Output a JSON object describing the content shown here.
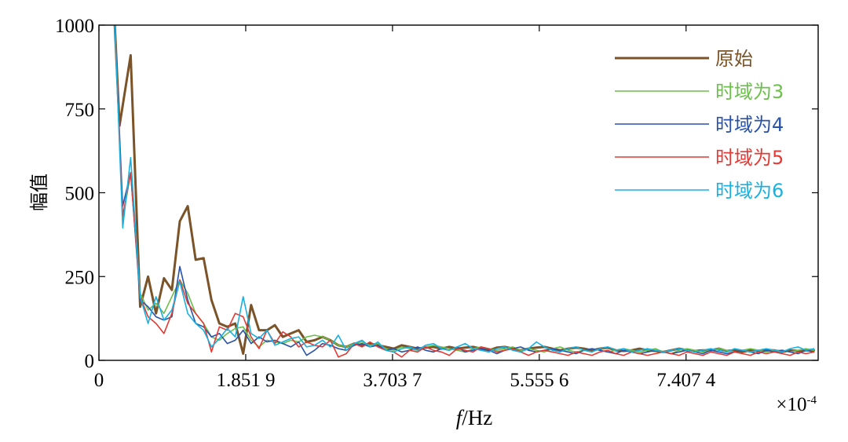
{
  "chart_data": {
    "type": "line",
    "title": "",
    "xlabel_var": "f",
    "xlabel_unit": "/Hz",
    "ylabel": "幅值",
    "x_multiplier": "×10",
    "x_multiplier_exp": "-4",
    "xlim": [
      0,
      9.074
    ],
    "ylim": [
      0,
      1000
    ],
    "xticks": [
      0,
      1.8519,
      3.7037,
      5.5556,
      7.4074
    ],
    "xtick_labels": [
      "0",
      "1.851 9",
      "3.703 7",
      "5.555 6",
      "7.407 4"
    ],
    "yticks": [
      0,
      250,
      500,
      750,
      1000
    ],
    "ytick_labels": [
      "0",
      "250",
      "500",
      "750",
      "1000"
    ],
    "grid": false,
    "legend_position": "top-right",
    "series": [
      {
        "name": "原始",
        "color": "#7B5328",
        "line_width": 3,
        "x": [
          0.2,
          0.26,
          0.4,
          0.52,
          0.62,
          0.72,
          0.82,
          0.92,
          1.02,
          1.12,
          1.22,
          1.32,
          1.42,
          1.52,
          1.62,
          1.72,
          1.82,
          1.92,
          2.02,
          2.12,
          2.22,
          2.32,
          2.42,
          2.52,
          2.62,
          2.72,
          2.82,
          2.92,
          3.02,
          3.12,
          3.22,
          3.32,
          3.42,
          3.52,
          3.62,
          3.72,
          3.82,
          3.92,
          4.02,
          4.12,
          4.22,
          4.32,
          4.42,
          4.52,
          4.62,
          4.72,
          4.82,
          4.92,
          5.02,
          5.12,
          5.22,
          5.32,
          5.42,
          5.52,
          5.62,
          5.72,
          5.82,
          5.92,
          6.02,
          6.12,
          6.22,
          6.32,
          6.42,
          6.52,
          6.62,
          6.72,
          6.82,
          6.92,
          7.02,
          7.12,
          7.22,
          7.32,
          7.42,
          7.52,
          7.62,
          7.72,
          7.82,
          7.92,
          8.02,
          8.12,
          8.22,
          8.32,
          8.42,
          8.52,
          8.62,
          8.72,
          8.82,
          8.92,
          9.02
        ],
        "y": [
          1000,
          700,
          910,
          160,
          250,
          140,
          245,
          210,
          415,
          460,
          300,
          305,
          180,
          110,
          100,
          110,
          20,
          165,
          90,
          90,
          105,
          70,
          80,
          90,
          55,
          60,
          70,
          60,
          45,
          40,
          50,
          45,
          50,
          45,
          40,
          35,
          45,
          40,
          35,
          38,
          40,
          35,
          40,
          35,
          38,
          40,
          35,
          30,
          38,
          40,
          35,
          30,
          35,
          38,
          40,
          35,
          30,
          35,
          38,
          35,
          30,
          35,
          38,
          30,
          28,
          30,
          35,
          30,
          28,
          25,
          30,
          35,
          30,
          28,
          30,
          30,
          35,
          28,
          30,
          25,
          30,
          28,
          30,
          30,
          25,
          30,
          28,
          30,
          30
        ]
      },
      {
        "name": "时域为3",
        "color": "#6BBF4A",
        "line_width": 1.6,
        "x": [
          0.2,
          0.3,
          0.4,
          0.52,
          0.62,
          0.72,
          0.82,
          0.92,
          1.02,
          1.12,
          1.22,
          1.32,
          1.42,
          1.52,
          1.62,
          1.72,
          1.82,
          1.92,
          2.02,
          2.12,
          2.22,
          2.32,
          2.42,
          2.52,
          2.62,
          2.72,
          2.82,
          2.92,
          3.02,
          3.12,
          3.22,
          3.32,
          3.42,
          3.52,
          3.62,
          3.72,
          3.82,
          3.92,
          4.02,
          4.12,
          4.22,
          4.32,
          4.42,
          4.52,
          4.62,
          4.72,
          4.82,
          4.92,
          5.02,
          5.12,
          5.22,
          5.32,
          5.42,
          5.52,
          5.62,
          5.72,
          5.82,
          5.92,
          6.02,
          6.12,
          6.22,
          6.32,
          6.42,
          6.52,
          6.62,
          6.72,
          6.82,
          6.92,
          7.02,
          7.12,
          7.22,
          7.32,
          7.42,
          7.52,
          7.62,
          7.72,
          7.82,
          7.92,
          8.02,
          8.12,
          8.22,
          8.32,
          8.42,
          8.52,
          8.62,
          8.72,
          8.82,
          8.92,
          9.02
        ],
        "y": [
          1000,
          420,
          560,
          200,
          150,
          170,
          140,
          190,
          240,
          200,
          140,
          110,
          70,
          60,
          80,
          95,
          100,
          60,
          40,
          60,
          55,
          50,
          60,
          55,
          70,
          75,
          70,
          60,
          45,
          40,
          50,
          55,
          45,
          50,
          35,
          30,
          40,
          35,
          30,
          40,
          45,
          40,
          35,
          30,
          25,
          35,
          40,
          35,
          30,
          35,
          40,
          30,
          35,
          30,
          25,
          35,
          40,
          30,
          25,
          30,
          35,
          30,
          25,
          30,
          35,
          30,
          25,
          30,
          35,
          25,
          20,
          30,
          35,
          30,
          25,
          30,
          35,
          30,
          25,
          30,
          35,
          30,
          25,
          30,
          30,
          25,
          30,
          35,
          30
        ]
      },
      {
        "name": "时域为4",
        "color": "#2A52A8",
        "line_width": 1.6,
        "x": [
          0.2,
          0.3,
          0.4,
          0.52,
          0.62,
          0.72,
          0.82,
          0.92,
          1.02,
          1.12,
          1.22,
          1.32,
          1.42,
          1.52,
          1.62,
          1.72,
          1.82,
          1.92,
          2.02,
          2.12,
          2.22,
          2.32,
          2.42,
          2.52,
          2.62,
          2.72,
          2.82,
          2.92,
          3.02,
          3.12,
          3.22,
          3.32,
          3.42,
          3.52,
          3.62,
          3.72,
          3.82,
          3.92,
          4.02,
          4.12,
          4.22,
          4.32,
          4.42,
          4.52,
          4.62,
          4.72,
          4.82,
          4.92,
          5.02,
          5.12,
          5.22,
          5.32,
          5.42,
          5.52,
          5.62,
          5.72,
          5.82,
          5.92,
          6.02,
          6.12,
          6.22,
          6.32,
          6.42,
          6.52,
          6.62,
          6.72,
          6.82,
          6.92,
          7.02,
          7.12,
          7.22,
          7.32,
          7.42,
          7.52,
          7.62,
          7.72,
          7.82,
          7.92,
          8.02,
          8.12,
          8.22,
          8.32,
          8.42,
          8.52,
          8.62,
          8.72,
          8.82,
          8.92,
          9.02
        ],
        "y": [
          1000,
          460,
          560,
          180,
          160,
          130,
          120,
          130,
          280,
          180,
          110,
          100,
          70,
          80,
          50,
          60,
          90,
          50,
          70,
          55,
          60,
          50,
          40,
          55,
          15,
          30,
          50,
          45,
          35,
          30,
          45,
          50,
          40,
          45,
          30,
          35,
          25,
          30,
          40,
          30,
          25,
          35,
          30,
          40,
          25,
          30,
          35,
          30,
          20,
          30,
          35,
          40,
          30,
          25,
          30,
          35,
          30,
          25,
          20,
          30,
          35,
          30,
          25,
          20,
          30,
          25,
          20,
          25,
          30,
          25,
          20,
          25,
          30,
          25,
          20,
          30,
          25,
          20,
          25,
          30,
          25,
          20,
          30,
          25,
          30,
          25,
          20,
          30,
          25
        ]
      },
      {
        "name": "时域为5",
        "color": "#E23A35",
        "line_width": 1.6,
        "x": [
          0.2,
          0.3,
          0.4,
          0.52,
          0.62,
          0.72,
          0.82,
          0.92,
          1.02,
          1.12,
          1.22,
          1.32,
          1.42,
          1.52,
          1.62,
          1.72,
          1.82,
          1.92,
          2.02,
          2.12,
          2.22,
          2.32,
          2.42,
          2.52,
          2.62,
          2.72,
          2.82,
          2.92,
          3.02,
          3.12,
          3.22,
          3.32,
          3.42,
          3.52,
          3.62,
          3.72,
          3.82,
          3.92,
          4.02,
          4.12,
          4.22,
          4.32,
          4.42,
          4.52,
          4.62,
          4.72,
          4.82,
          4.92,
          5.02,
          5.12,
          5.22,
          5.32,
          5.42,
          5.52,
          5.62,
          5.72,
          5.82,
          5.92,
          6.02,
          6.12,
          6.22,
          6.32,
          6.42,
          6.52,
          6.62,
          6.72,
          6.82,
          6.92,
          7.02,
          7.12,
          7.22,
          7.32,
          7.42,
          7.52,
          7.62,
          7.72,
          7.82,
          7.92,
          8.02,
          8.12,
          8.22,
          8.32,
          8.42,
          8.52,
          8.62,
          8.72,
          8.82,
          8.92,
          9.02
        ],
        "y": [
          1000,
          430,
          560,
          190,
          130,
          110,
          80,
          140,
          240,
          170,
          140,
          110,
          25,
          100,
          90,
          140,
          130,
          70,
          35,
          90,
          50,
          85,
          70,
          40,
          55,
          45,
          40,
          60,
          10,
          20,
          50,
          40,
          55,
          40,
          30,
          25,
          10,
          30,
          25,
          40,
          30,
          25,
          15,
          35,
          30,
          25,
          40,
          35,
          25,
          30,
          35,
          25,
          15,
          25,
          30,
          25,
          20,
          15,
          25,
          20,
          15,
          25,
          30,
          20,
          15,
          25,
          20,
          15,
          20,
          25,
          20,
          15,
          25,
          20,
          15,
          25,
          20,
          15,
          25,
          20,
          15,
          25,
          20,
          25,
          20,
          15,
          25,
          20,
          25
        ]
      },
      {
        "name": "时域为6",
        "color": "#1AB0E0",
        "line_width": 1.6,
        "x": [
          0.2,
          0.3,
          0.4,
          0.52,
          0.62,
          0.72,
          0.82,
          0.92,
          1.02,
          1.12,
          1.22,
          1.32,
          1.42,
          1.52,
          1.62,
          1.72,
          1.82,
          1.92,
          2.02,
          2.12,
          2.22,
          2.32,
          2.42,
          2.52,
          2.62,
          2.72,
          2.82,
          2.92,
          3.02,
          3.12,
          3.22,
          3.32,
          3.42,
          3.52,
          3.62,
          3.72,
          3.82,
          3.92,
          4.02,
          4.12,
          4.22,
          4.32,
          4.42,
          4.52,
          4.62,
          4.72,
          4.82,
          4.92,
          5.02,
          5.12,
          5.22,
          5.32,
          5.42,
          5.52,
          5.62,
          5.72,
          5.82,
          5.92,
          6.02,
          6.12,
          6.22,
          6.32,
          6.42,
          6.52,
          6.62,
          6.72,
          6.82,
          6.92,
          7.02,
          7.12,
          7.22,
          7.32,
          7.42,
          7.52,
          7.62,
          7.72,
          7.82,
          7.92,
          8.02,
          8.12,
          8.22,
          8.32,
          8.42,
          8.52,
          8.62,
          8.72,
          8.82,
          8.92,
          9.02
        ],
        "y": [
          1000,
          395,
          605,
          190,
          110,
          190,
          120,
          150,
          235,
          140,
          110,
          90,
          40,
          65,
          95,
          70,
          190,
          80,
          65,
          90,
          45,
          55,
          65,
          70,
          40,
          45,
          60,
          40,
          75,
          30,
          50,
          60,
          40,
          55,
          30,
          25,
          35,
          40,
          30,
          45,
          50,
          35,
          30,
          40,
          50,
          35,
          30,
          25,
          35,
          40,
          30,
          25,
          35,
          55,
          40,
          30,
          25,
          35,
          40,
          30,
          25,
          35,
          40,
          30,
          35,
          25,
          30,
          35,
          30,
          25,
          30,
          35,
          30,
          25,
          30,
          35,
          30,
          25,
          35,
          30,
          25,
          30,
          35,
          30,
          25,
          35,
          40,
          30,
          35
        ]
      }
    ]
  }
}
